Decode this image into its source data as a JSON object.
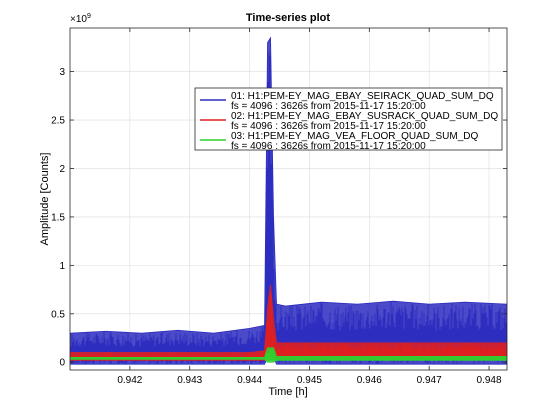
{
  "chart_data": {
    "type": "line",
    "title": "Time-series plot",
    "xlabel": "Time [h]",
    "ylabel": "Amplitude [Counts]",
    "y_exponent_label": "×10",
    "y_exponent_power": "9",
    "y_scale": 1000000000,
    "xlim": [
      0.941,
      0.9483
    ],
    "ylim": [
      -0.08,
      3.45
    ],
    "x_ticks": [
      0.942,
      0.943,
      0.944,
      0.945,
      0.946,
      0.947,
      0.948
    ],
    "x_tick_labels": [
      "0.942",
      "0.943",
      "0.944",
      "0.945",
      "0.946",
      "0.947",
      "0.948"
    ],
    "y_ticks": [
      0,
      0.5,
      1,
      1.5,
      2,
      2.5,
      3
    ],
    "y_tick_labels": [
      "0",
      "0.5",
      "1",
      "1.5",
      "2",
      "2.5",
      "3"
    ],
    "grid": true,
    "legend_position": "upper-right",
    "series": [
      {
        "name": "01: H1:PEM-EY_MAG_EBAY_SEIRACK_QUAD_SUM_DQ",
        "subtitle": "fs = 4096 : 3626s from 2015-11-17 15:20:00",
        "color": "#2b2bbf",
        "x": [
          0.941,
          0.9416,
          0.9422,
          0.9428,
          0.9434,
          0.944,
          0.94425,
          0.9443,
          0.94435,
          0.9444,
          0.94445,
          0.9446,
          0.9452,
          0.9458,
          0.9464,
          0.947,
          0.9476,
          0.9483
        ],
        "min": [
          -0.02,
          -0.02,
          -0.02,
          -0.02,
          -0.02,
          -0.02,
          -0.02,
          0.05,
          0.05,
          0.05,
          -0.02,
          -0.02,
          -0.02,
          -0.02,
          -0.02,
          -0.02,
          -0.02,
          -0.02
        ],
        "max": [
          0.3,
          0.32,
          0.3,
          0.33,
          0.3,
          0.35,
          0.38,
          3.3,
          3.35,
          1.5,
          0.6,
          0.58,
          0.62,
          0.6,
          0.63,
          0.6,
          0.62,
          0.6
        ]
      },
      {
        "name": "02: H1:PEM-EY_MAG_EBAY_SUSRACK_QUAD_SUM_DQ",
        "subtitle": "fs = 4096 : 3626s from 2015-11-17 15:20:00",
        "color": "#e02020",
        "x": [
          0.941,
          0.9416,
          0.9422,
          0.9428,
          0.9434,
          0.944,
          0.94425,
          0.9443,
          0.94435,
          0.9444,
          0.94445,
          0.9446,
          0.9452,
          0.9458,
          0.9464,
          0.947,
          0.9476,
          0.9483
        ],
        "min": [
          0.02,
          0.02,
          0.02,
          0.02,
          0.02,
          0.02,
          0.02,
          0.05,
          0.05,
          0.05,
          0.03,
          0.03,
          0.03,
          0.03,
          0.03,
          0.03,
          0.03,
          0.03
        ],
        "max": [
          0.1,
          0.1,
          0.1,
          0.1,
          0.1,
          0.1,
          0.12,
          0.55,
          0.8,
          0.45,
          0.2,
          0.2,
          0.2,
          0.2,
          0.2,
          0.2,
          0.2,
          0.2
        ]
      },
      {
        "name": "03: H1:PEM-EY_MAG_VEA_FLOOR_QUAD_SUM_DQ",
        "subtitle": "fs = 4096 : 3626s from 2015-11-17 15:20:00",
        "color": "#2fd12f",
        "x": [
          0.941,
          0.9416,
          0.9422,
          0.9428,
          0.9434,
          0.944,
          0.94425,
          0.9443,
          0.94435,
          0.9444,
          0.94445,
          0.9446,
          0.9452,
          0.9458,
          0.9464,
          0.947,
          0.9476,
          0.9483
        ],
        "min": [
          0.03,
          0.03,
          0.03,
          0.03,
          0.03,
          0.03,
          0.03,
          0.0,
          0.0,
          0.0,
          0.02,
          0.02,
          0.02,
          0.02,
          0.02,
          0.02,
          0.02,
          0.02
        ],
        "max": [
          0.05,
          0.05,
          0.05,
          0.05,
          0.05,
          0.05,
          0.05,
          0.15,
          0.15,
          0.15,
          0.06,
          0.06,
          0.06,
          0.06,
          0.06,
          0.06,
          0.06,
          0.06
        ]
      }
    ]
  }
}
